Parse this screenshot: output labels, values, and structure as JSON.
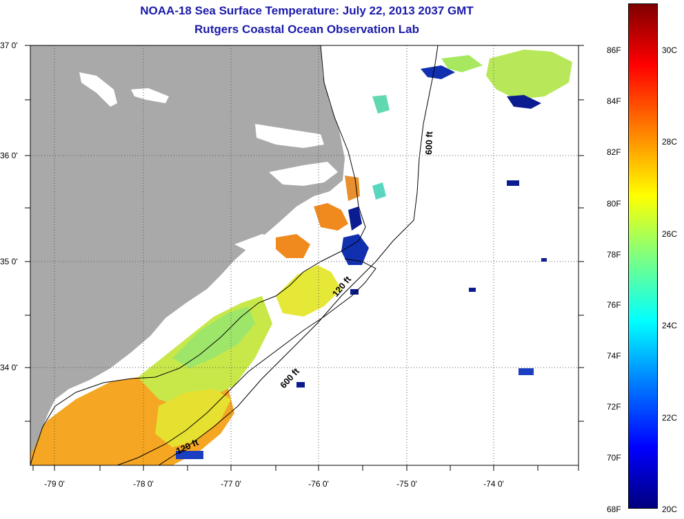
{
  "title": {
    "line1": "NOAA-18 Sea Surface Temperature:  July 22, 2013 2037 GMT",
    "line2": "Rutgers Coastal Ocean Observation Lab"
  },
  "map": {
    "lat_labels": [
      "37 0'",
      "36 0'",
      "35 0'",
      "34 0'"
    ],
    "lon_labels": [
      "-79 0'",
      "-78 0'",
      "-77 0'",
      "-76 0'",
      "-75 0'",
      "-74 0'"
    ],
    "contour_labels": {
      "c600_north": "600 ft",
      "c600_south": "600 ft",
      "c120_mid": "120 ft",
      "c120_south": "120 ft"
    },
    "colors": {
      "land": "#a9a9a9",
      "ocean_nodata": "#ffffff",
      "grid": "#555555"
    }
  },
  "colorbar": {
    "fahrenheit": [
      "86F",
      "84F",
      "82F",
      "80F",
      "78F",
      "76F",
      "74F",
      "72F",
      "70F",
      "68F"
    ],
    "celsius": [
      "30C",
      "28C",
      "26C",
      "24C",
      "22C",
      "20C"
    ],
    "range_c": [
      20,
      31
    ],
    "colormap": [
      "#00007f",
      "#0000ff",
      "#007fff",
      "#00ffff",
      "#7fff7f",
      "#ffff00",
      "#ff7f00",
      "#ff0000",
      "#7f0000"
    ]
  }
}
